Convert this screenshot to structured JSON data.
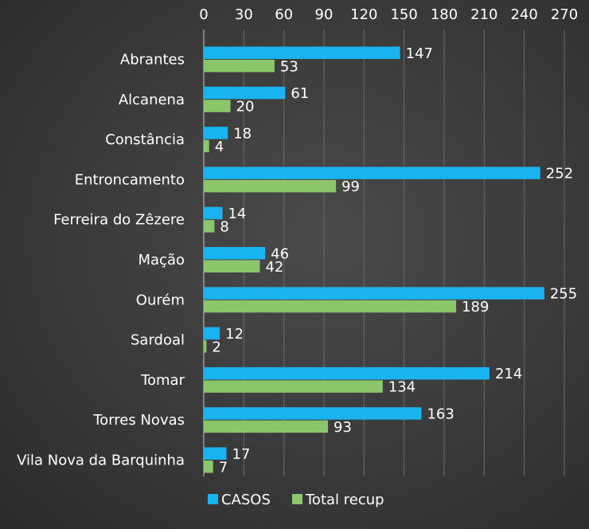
{
  "chart_data": {
    "type": "bar",
    "orientation": "horizontal",
    "categories": [
      "Abrantes",
      "Alcanena",
      "Constância",
      "Entroncamento",
      "Ferreira do Zêzere",
      "Mação",
      "Ourém",
      "Sardoal",
      "Tomar",
      "Torres Novas",
      "Vila Nova da Barquinha"
    ],
    "series": [
      {
        "name": "CASOS",
        "color": "#19b4f0",
        "values": [
          147,
          61,
          18,
          252,
          14,
          46,
          255,
          12,
          214,
          163,
          17
        ]
      },
      {
        "name": "Total recup",
        "color": "#8cc66c",
        "values": [
          53,
          20,
          4,
          99,
          8,
          42,
          189,
          2,
          134,
          93,
          7
        ]
      }
    ],
    "xlim": [
      0,
      270
    ],
    "xticks": [
      0,
      30,
      60,
      90,
      120,
      150,
      180,
      210,
      240,
      270
    ],
    "axis_position": "top",
    "grid": true,
    "legend_position": "bottom",
    "data_labels": true
  }
}
